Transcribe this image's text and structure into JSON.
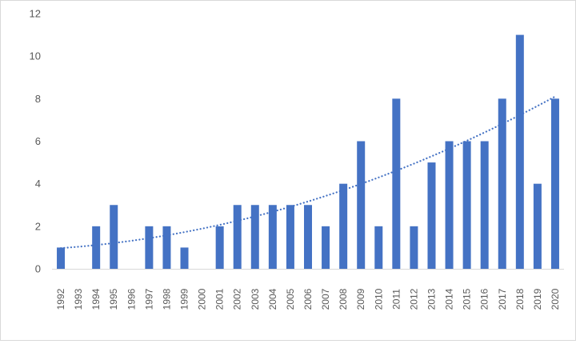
{
  "chart_data": {
    "type": "bar",
    "categories": [
      "1992",
      "1993",
      "1994",
      "1995",
      "1996",
      "1997",
      "1998",
      "1999",
      "2000",
      "2001",
      "2002",
      "2003",
      "2004",
      "2005",
      "2006",
      "2007",
      "2008",
      "2009",
      "2010",
      "2011",
      "2012",
      "2013",
      "2014",
      "2015",
      "2016",
      "2017",
      "2018",
      "2019",
      "2020"
    ],
    "series": [
      {
        "values": [
          1,
          0,
          2,
          3,
          0,
          2,
          2,
          1,
          0,
          2,
          3,
          3,
          3,
          3,
          3,
          2,
          4,
          6,
          2,
          8,
          2,
          5,
          6,
          6,
          6,
          8,
          11,
          4,
          8
        ],
        "color": "#4472C4"
      }
    ],
    "trendline": {
      "type": "polynomial",
      "style": "dotted",
      "color": "#4472C4"
    },
    "yticks": [
      "0",
      "2",
      "4",
      "6",
      "8",
      "10",
      "12"
    ],
    "ylim": [
      0,
      12
    ],
    "title": "",
    "xlabel": "",
    "ylabel": "",
    "grid": false,
    "legend": "none"
  }
}
